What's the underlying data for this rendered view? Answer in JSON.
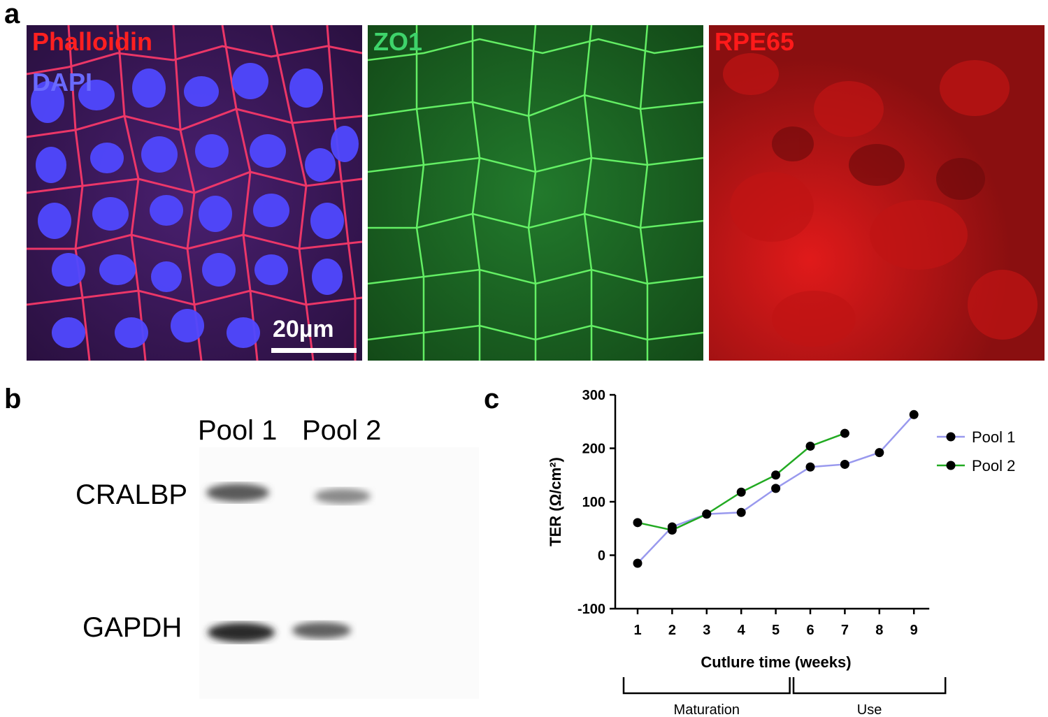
{
  "panel_a": {
    "letter": "a",
    "images": [
      {
        "labels": [
          {
            "text": "Phalloidin",
            "color": "#ff2020"
          },
          {
            "text": "DAPI",
            "color": "#5a5aff"
          }
        ],
        "scalebar": "20µm"
      },
      {
        "labels": [
          {
            "text": "ZO1",
            "color": "#3ed36a"
          }
        ]
      },
      {
        "labels": [
          {
            "text": "RPE65",
            "color": "#ff1a1a"
          }
        ]
      }
    ]
  },
  "panel_b": {
    "letter": "b",
    "lanes": [
      "Pool 1",
      "Pool 2"
    ],
    "bands": [
      "CRALBP",
      "GAPDH"
    ]
  },
  "panel_c": {
    "letter": "c",
    "phases": [
      {
        "label": "Maturation",
        "from_week": 1,
        "to_week": 5
      },
      {
        "label": "Use",
        "from_week": 6,
        "to_week": 9
      }
    ]
  },
  "chart_data": {
    "type": "line",
    "title": "",
    "xlabel": "Cutlure time (weeks)",
    "ylabel": "TER (Ω/cm²)",
    "ylim": [
      -100,
      300
    ],
    "yticks": [
      -100,
      0,
      100,
      200,
      300
    ],
    "xticks": [
      1,
      2,
      3,
      4,
      5,
      6,
      7,
      8,
      9
    ],
    "grid": false,
    "legend_position": "right",
    "series": [
      {
        "name": "Pool 1",
        "color": "#9999ee",
        "x": [
          1,
          2,
          3,
          4,
          5,
          6,
          7,
          8,
          9
        ],
        "y": [
          -15,
          53,
          77,
          80,
          125,
          165,
          170,
          192,
          263
        ]
      },
      {
        "name": "Pool 2",
        "color": "#22aa22",
        "x": [
          1,
          2,
          3,
          4,
          5,
          6,
          7
        ],
        "y": [
          61,
          47,
          77,
          118,
          150,
          204,
          228
        ]
      }
    ]
  }
}
